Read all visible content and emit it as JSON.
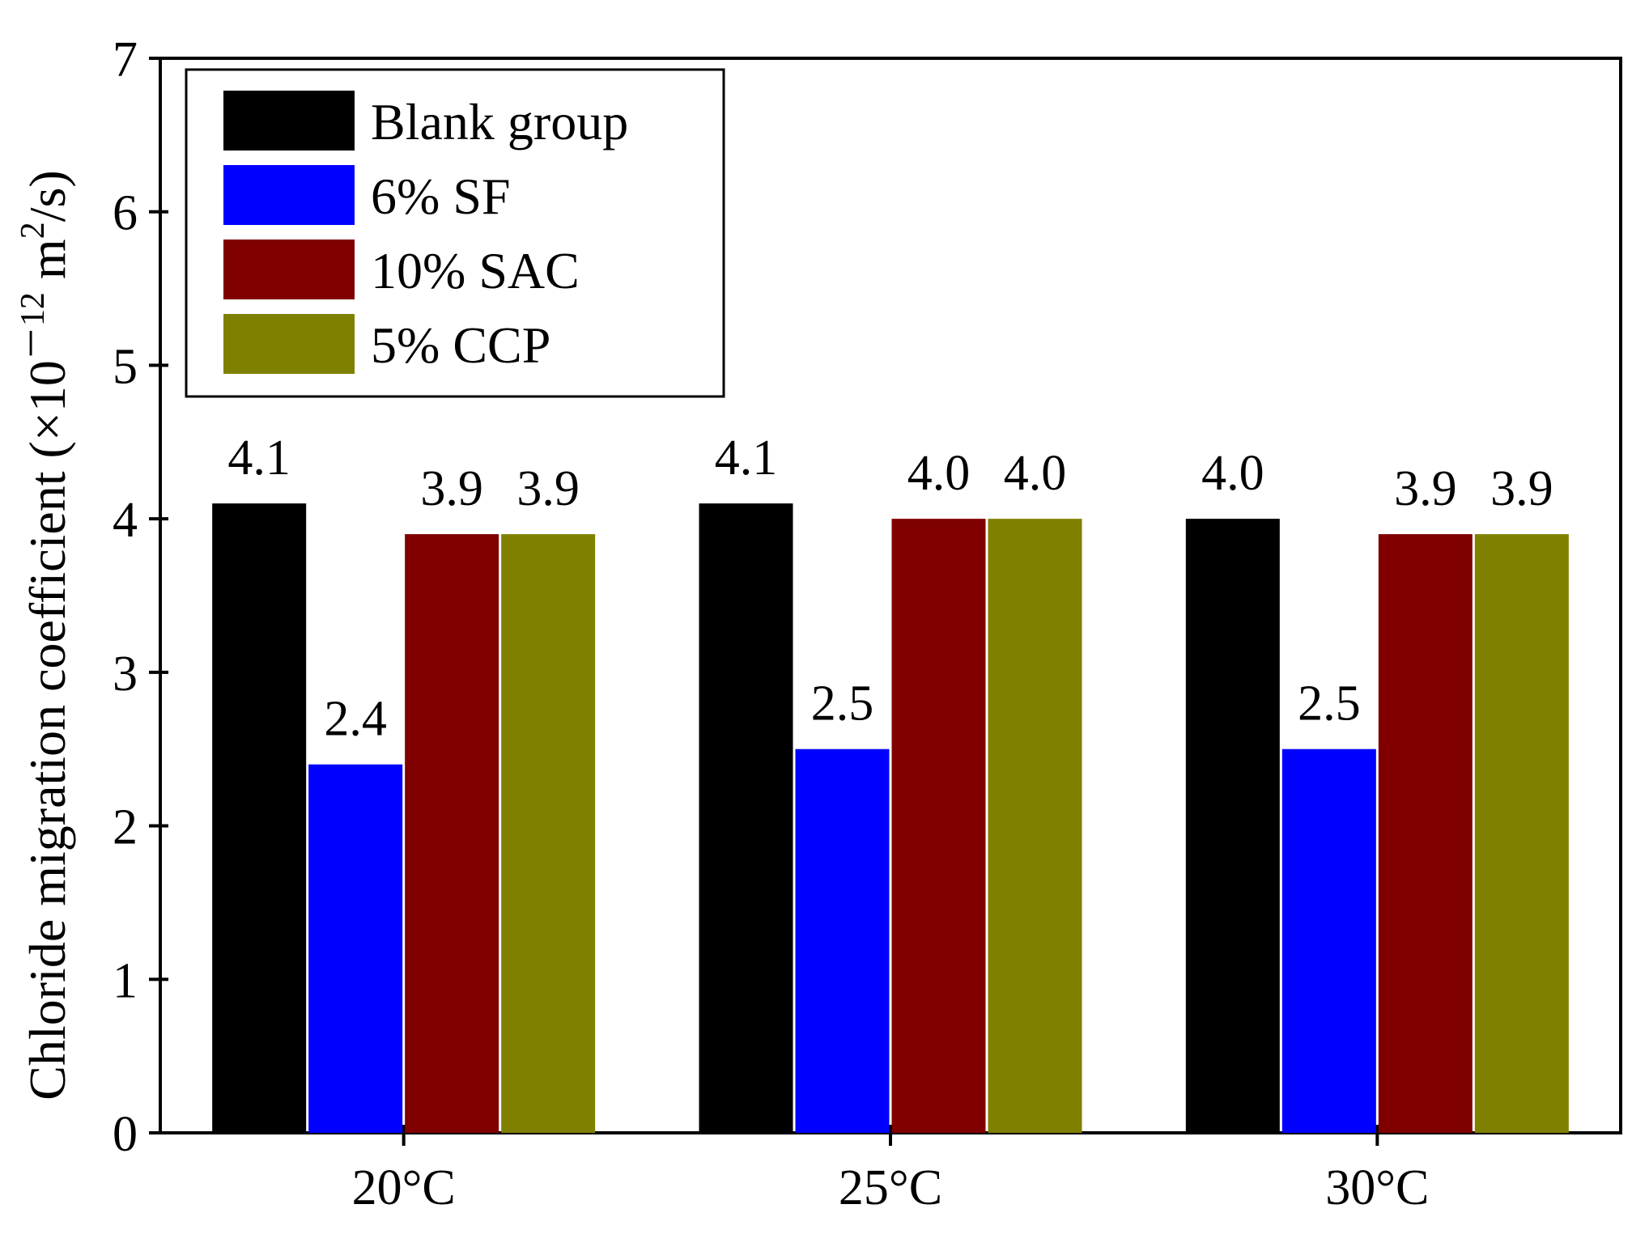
{
  "chart_data": {
    "type": "bar",
    "title": "",
    "xlabel": "",
    "ylabel": {
      "main": "Chloride migration coefficient (×10",
      "exponent": "－12",
      "unit_main": " m",
      "unit_exponent": "2",
      "unit_tail": "/s)"
    },
    "ylim": [
      0,
      7
    ],
    "yticks": [
      "0",
      "1",
      "2",
      "3",
      "4",
      "5",
      "6",
      "7"
    ],
    "categories": [
      "20°C",
      "25°C",
      "30°C"
    ],
    "legend_position": "top-left",
    "series": [
      {
        "name": "Blank group",
        "color": "#000000",
        "values": [
          4.1,
          4.1,
          4.0
        ],
        "labels": [
          "4.1",
          "4.1",
          "4.0"
        ]
      },
      {
        "name": "6% SF",
        "color": "#0000ff",
        "values": [
          2.4,
          2.5,
          2.5
        ],
        "labels": [
          "2.4",
          "2.5",
          "2.5"
        ]
      },
      {
        "name": "10% SAC",
        "color": "#800000",
        "values": [
          3.9,
          4.0,
          3.9
        ],
        "labels": [
          "3.9",
          "4.0",
          "3.9"
        ]
      },
      {
        "name": "5% CCP",
        "color": "#808000",
        "values": [
          3.9,
          4.0,
          3.9
        ],
        "labels": [
          "3.9",
          "4.0",
          "3.9"
        ]
      }
    ]
  }
}
